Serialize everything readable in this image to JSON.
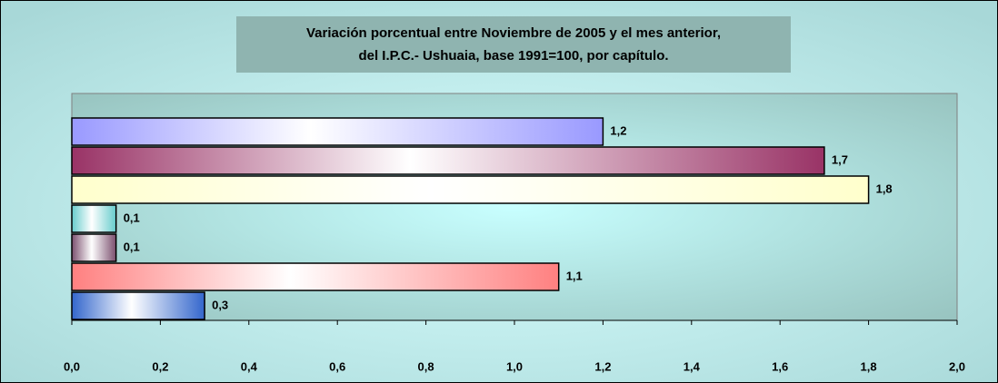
{
  "chart_data": {
    "type": "bar",
    "orientation": "horizontal",
    "title": [
      "Variación porcentual entre Noviembre de 2005 y el mes anterior,",
      "del I.P.C.- Ushuaia, base 1991=100, por capítulo."
    ],
    "categories": [
      null,
      null,
      null,
      null,
      null,
      null,
      null
    ],
    "values": [
      1.2,
      1.7,
      1.8,
      0.1,
      0.1,
      1.1,
      0.3
    ],
    "value_labels": [
      "1,2",
      "1,7",
      "1,8",
      "0,1",
      "0,1",
      "1,1",
      "0,3"
    ],
    "colors": [
      "#9999ff",
      "#993366",
      "#ffffcc",
      "#66cccc",
      "#7a4f6e",
      "#ff8080",
      "#3366cc"
    ],
    "xlim": [
      0,
      2
    ],
    "xticks": [
      {
        "value": 0,
        "label": "0,0"
      },
      {
        "value": 0.2,
        "label": "0,2"
      },
      {
        "value": 0.4,
        "label": "0,4"
      },
      {
        "value": 0.6,
        "label": "0,6"
      },
      {
        "value": 0.8,
        "label": "0,8"
      },
      {
        "value": 1.0,
        "label": "1,0"
      },
      {
        "value": 1.2,
        "label": "1,2"
      },
      {
        "value": 1.4,
        "label": "1,4"
      },
      {
        "value": 1.6,
        "label": "1,6"
      },
      {
        "value": 1.8,
        "label": "1,8"
      },
      {
        "value": 2.0,
        "label": "2,0"
      }
    ],
    "grid": false
  }
}
